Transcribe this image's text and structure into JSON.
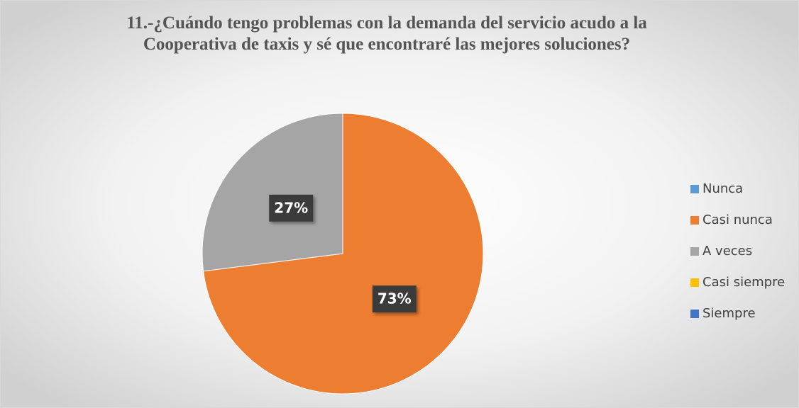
{
  "chart_data": {
    "type": "pie",
    "title": [
      "11.-¿Cuándo tengo problemas con la demanda del servicio acudo a la",
      "Cooperativa de taxis y sé que encontraré las mejores soluciones?"
    ],
    "categories": [
      "Nunca",
      "Casi nunca",
      "A veces",
      "Casi siempre",
      "Siempre"
    ],
    "values": [
      0,
      73,
      27,
      0,
      0
    ],
    "value_labels": [
      null,
      "73%",
      "27%",
      null,
      null
    ],
    "colors": [
      "#5b9bd5",
      "#ed7d31",
      "#a5a5a5",
      "#ffc000",
      "#4472c4"
    ],
    "legend": "right"
  }
}
